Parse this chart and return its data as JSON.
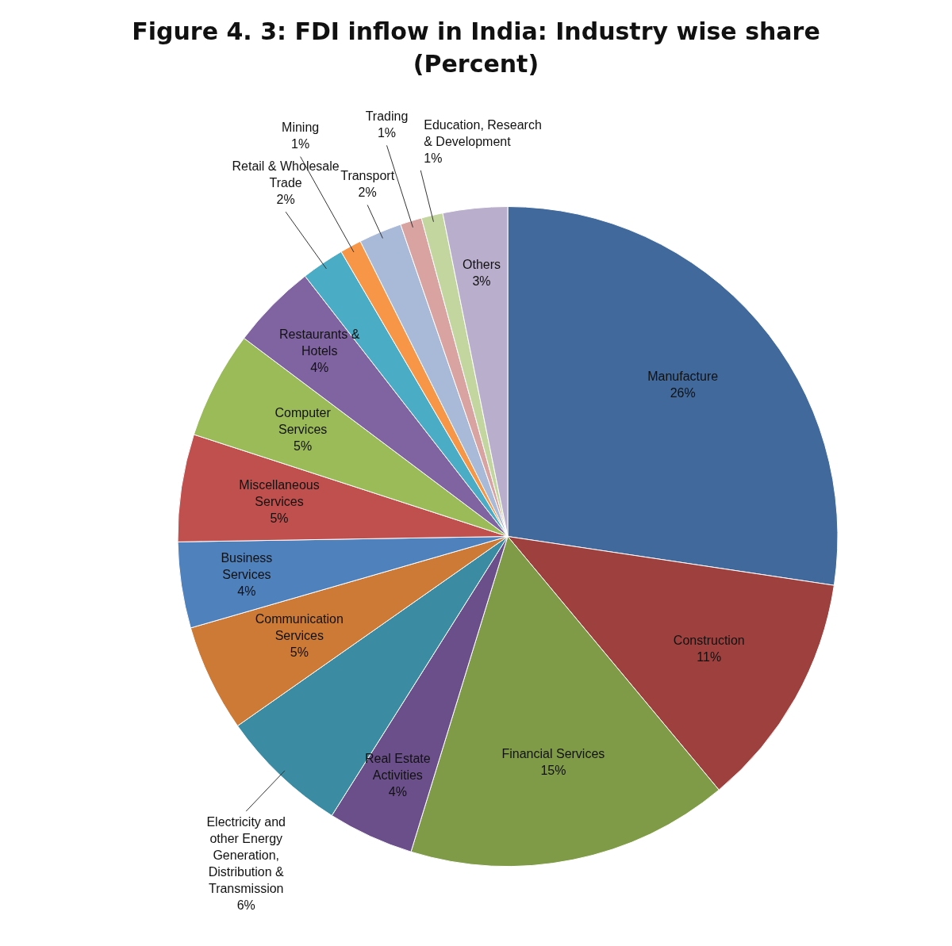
{
  "chart_data": {
    "type": "pie",
    "title": "Figure 4. 3: FDI inflow in India: Industry wise share (Percent)",
    "categories": [
      "Manufacture",
      "Construction",
      "Financial Services",
      "Real Estate Activities",
      "Electricity and other Energy Generation, Distribution & Transmission",
      "Communication Services",
      "Business Services",
      "Miscellaneous Services",
      "Computer Services",
      "Restaurants & Hotels",
      "Retail & Wholesale Trade",
      "Mining",
      "Transport",
      "Trading",
      "Education, Research & Development",
      "Others"
    ],
    "values": [
      26,
      11,
      15,
      4,
      6,
      5,
      4,
      5,
      5,
      4,
      2,
      1,
      2,
      1,
      1,
      3
    ],
    "value_labels": [
      "26%",
      "11%",
      "15%",
      "4%",
      "6%",
      "5%",
      "4%",
      "5%",
      "5%",
      "4%",
      "2%",
      "1%",
      "2%",
      "1%",
      "1%",
      "3%"
    ],
    "colors": [
      "#41699b",
      "#9e413e",
      "#809b48",
      "#6a4f8a",
      "#3b8ca3",
      "#cd7a37",
      "#4f81bd",
      "#c0504d",
      "#9bbb59",
      "#8064a2",
      "#4bacc6",
      "#f79646",
      "#a9b9d8",
      "#d9a3a2",
      "#c4d6a0",
      "#b9aecb"
    ],
    "legend": false
  }
}
